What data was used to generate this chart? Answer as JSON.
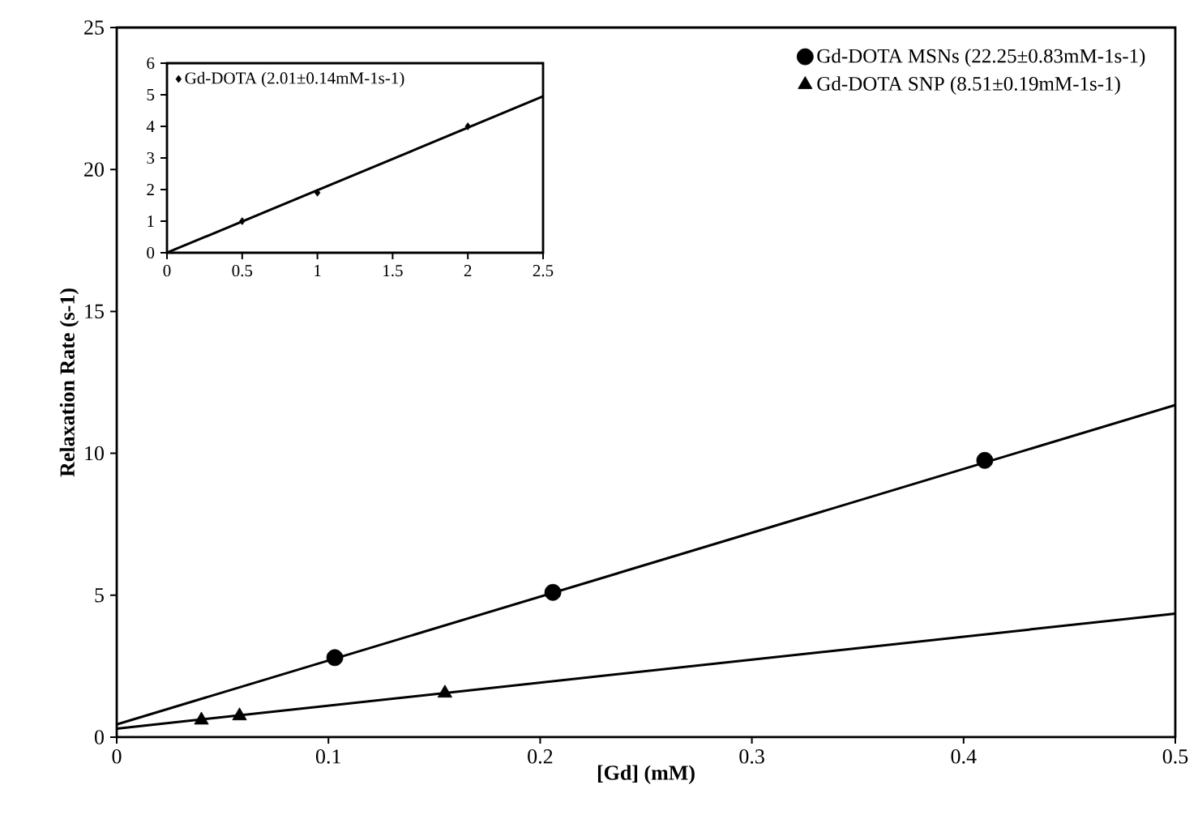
{
  "chart_data": [
    {
      "type": "scatter",
      "xlabel": "[Gd] (mM)",
      "ylabel": "Relaxation Rate (s-1)",
      "xlim": [
        0,
        0.5
      ],
      "ylim": [
        0,
        25
      ],
      "xticks": [
        0,
        0.1,
        0.2,
        0.3,
        0.4,
        0.5
      ],
      "yticks": [
        0,
        5,
        10,
        15,
        20,
        25
      ],
      "legend": "top right",
      "series": [
        {
          "name": "Gd-DOTA MSNs (22.25±0.83mM-1s-1)",
          "color": "#000000",
          "marker": "circle",
          "x": [
            0.103,
            0.206,
            0.41
          ],
          "values": [
            2.8,
            5.1,
            9.75
          ]
        },
        {
          "name": "Gd-DOTA SNP (8.51±0.19mM-1s-1)",
          "color": "#000000",
          "marker": "triangle",
          "x": [
            0.04,
            0.058,
            0.155
          ],
          "values": [
            0.6,
            0.75,
            1.55
          ]
        },
        {
          "type": "line",
          "color": "#000000",
          "x": [
            0,
            0.5
          ],
          "values": [
            0.45,
            11.7
          ]
        },
        {
          "type": "line",
          "color": "#000000",
          "x": [
            0,
            0.5
          ],
          "values": [
            0.3,
            4.35
          ]
        }
      ]
    },
    {
      "type": "scatter",
      "xlim": [
        0,
        2.5
      ],
      "ylim": [
        0,
        6
      ],
      "xticks": [
        0,
        0.5,
        1,
        1.5,
        2,
        2.5
      ],
      "yticks": [
        0,
        1,
        2,
        3,
        4,
        5,
        6
      ],
      "legend": "top left",
      "series": [
        {
          "name": "Gd-DOTA (2.01±0.14mM-1s-1)",
          "color": "#000000",
          "marker": "diamond",
          "x": [
            0.5,
            1,
            2
          ],
          "values": [
            1.0,
            1.9,
            4.0
          ]
        },
        {
          "type": "line",
          "color": "#000000",
          "x": [
            0,
            2.5
          ],
          "values": [
            0,
            4.95
          ]
        }
      ]
    }
  ]
}
